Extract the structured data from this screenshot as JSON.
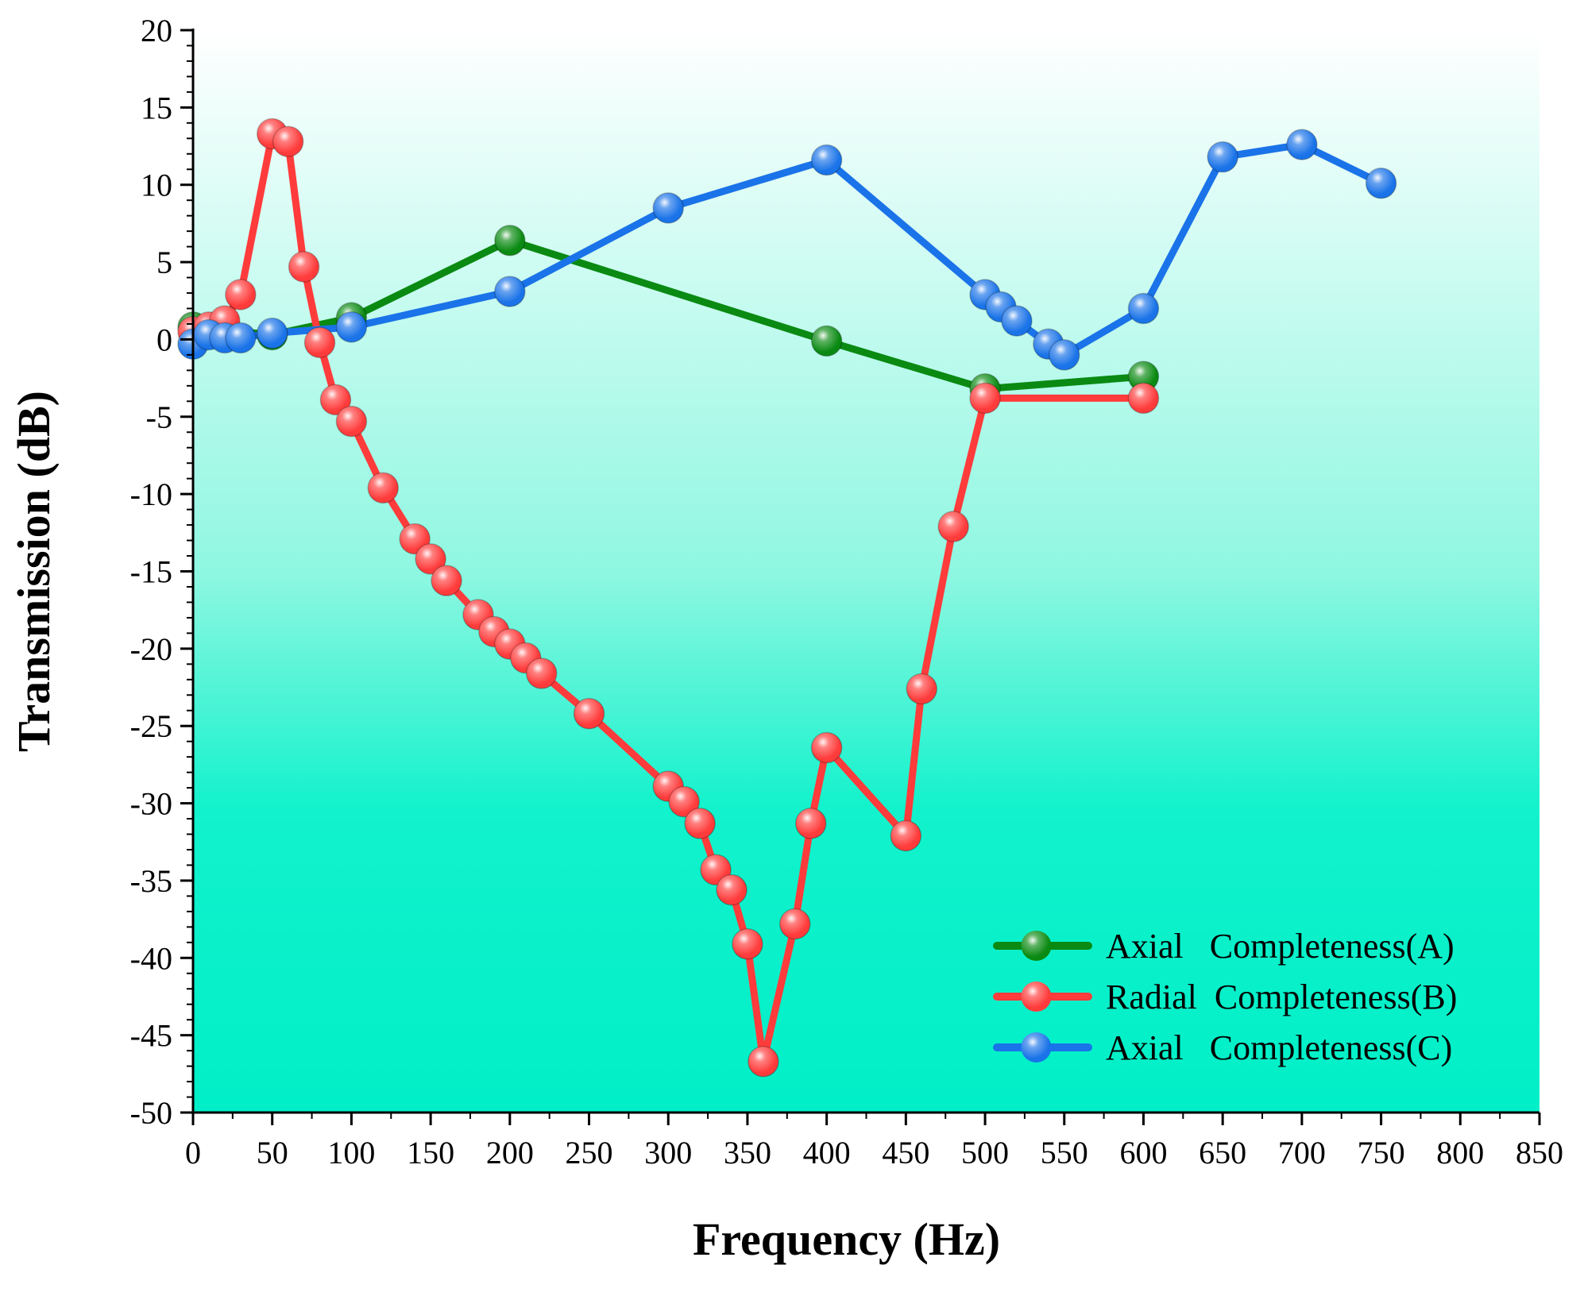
{
  "chart_data": {
    "type": "line",
    "title": "",
    "xlabel": "Frequency (Hz)",
    "ylabel": "Transmission (dB)",
    "xlim": [
      0,
      850
    ],
    "ylim": [
      -50,
      20
    ],
    "xticks": [
      0,
      50,
      100,
      150,
      200,
      250,
      300,
      350,
      400,
      450,
      500,
      550,
      600,
      650,
      700,
      750,
      800,
      850
    ],
    "yticks": [
      20,
      15,
      10,
      5,
      0,
      -5,
      -10,
      -15,
      -20,
      -25,
      -30,
      -35,
      -40,
      -45,
      -50
    ],
    "xtick_labels": [
      "0",
      "50",
      "100",
      "150",
      "200",
      "250",
      "300",
      "350",
      "400",
      "450",
      "500",
      "550",
      "600",
      "650",
      "700",
      "750",
      "800",
      "850"
    ],
    "ytick_labels": [
      "20",
      "15",
      "10",
      "5",
      "0",
      "-5",
      "-10",
      "-15",
      "-20",
      "-25",
      "-30",
      "-35",
      "-40",
      "-45",
      "-50"
    ],
    "grid": false,
    "legend_position": "bottom-right",
    "background_gradient": [
      "#ffffff",
      "#00f5d4"
    ],
    "series": [
      {
        "name": "Axial   Completeness(A)",
        "color": "#0a8a12",
        "x": [
          0,
          50,
          100,
          200,
          400,
          500,
          600
        ],
        "y": [
          0.8,
          0.3,
          1.4,
          6.4,
          -0.1,
          -3.2,
          -2.4
        ]
      },
      {
        "name": "Radial  Completeness(B)",
        "color": "#ff3b3b",
        "x": [
          0,
          10,
          20,
          30,
          50,
          60,
          70,
          80,
          90,
          100,
          120,
          140,
          150,
          160,
          180,
          190,
          200,
          210,
          220,
          250,
          300,
          310,
          320,
          330,
          340,
          350,
          360,
          380,
          390,
          400,
          450,
          460,
          480,
          500,
          600
        ],
        "y": [
          0.5,
          0.8,
          1.2,
          2.9,
          13.3,
          12.8,
          4.7,
          -0.2,
          -3.9,
          -5.3,
          -9.6,
          -12.9,
          -14.2,
          -15.6,
          -17.8,
          -18.9,
          -19.7,
          -20.6,
          -21.6,
          -24.2,
          -28.9,
          -29.9,
          -31.3,
          -34.3,
          -35.6,
          -39.1,
          -46.7,
          -37.8,
          -31.3,
          -26.4,
          -32.1,
          -22.6,
          -12.1,
          -3.8,
          -3.8
        ]
      },
      {
        "name": "Axial   Completeness(C)",
        "color": "#1a73e8",
        "x": [
          0,
          10,
          20,
          30,
          50,
          100,
          200,
          300,
          400,
          500,
          510,
          520,
          540,
          550,
          600,
          650,
          700,
          750
        ],
        "y": [
          -0.3,
          0.3,
          0.1,
          0.1,
          0.4,
          0.8,
          3.1,
          8.5,
          11.6,
          2.9,
          2.1,
          1.2,
          -0.3,
          -1.0,
          2.0,
          11.8,
          12.6,
          10.1
        ]
      }
    ]
  }
}
